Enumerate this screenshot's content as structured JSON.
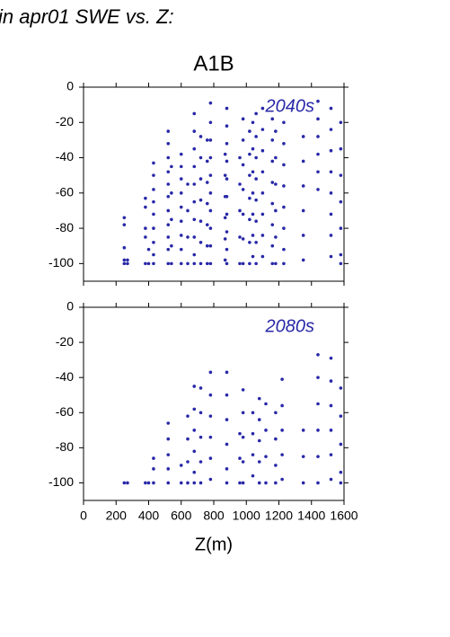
{
  "chart_data": [
    {
      "type": "scatter",
      "title": "in apr01 SWE vs. Z:",
      "subtitle": "A1B",
      "label": "2040s",
      "color": "#2828a8",
      "xlim": [
        0,
        1600
      ],
      "xticks": [
        0,
        200,
        400,
        600,
        800,
        1000,
        1200,
        1400,
        1600
      ],
      "ylim": [
        -110,
        0
      ],
      "yticks": [
        0,
        -20,
        -40,
        -60,
        -80,
        -100
      ],
      "x": [
        250,
        250,
        250,
        250,
        250,
        270,
        270,
        380,
        380,
        380,
        380,
        380,
        400,
        400,
        430,
        430,
        430,
        430,
        430,
        430,
        430,
        430,
        430,
        520,
        520,
        520,
        520,
        520,
        520,
        520,
        520,
        520,
        520,
        520,
        540,
        540,
        540,
        540,
        540,
        600,
        600,
        600,
        600,
        600,
        600,
        600,
        600,
        600,
        640,
        640,
        640,
        640,
        680,
        680,
        680,
        680,
        680,
        680,
        680,
        680,
        680,
        680,
        720,
        720,
        720,
        720,
        720,
        720,
        720,
        760,
        760,
        760,
        760,
        760,
        760,
        760,
        780,
        780,
        780,
        780,
        780,
        780,
        780,
        780,
        780,
        780,
        870,
        870,
        870,
        870,
        870,
        870,
        880,
        880,
        880,
        880,
        880,
        880,
        880,
        880,
        880,
        880,
        960,
        960,
        960,
        960,
        960,
        980,
        980,
        980,
        980,
        980,
        980,
        980,
        1020,
        1020,
        1020,
        1020,
        1020,
        1020,
        1020,
        1040,
        1040,
        1040,
        1040,
        1040,
        1040,
        1040,
        1060,
        1060,
        1060,
        1060,
        1060,
        1060,
        1060,
        1060,
        1100,
        1100,
        1100,
        1100,
        1100,
        1100,
        1100,
        1100,
        1160,
        1160,
        1160,
        1160,
        1160,
        1160,
        1160,
        1160,
        1180,
        1180,
        1180,
        1180,
        1180,
        1180,
        1230,
        1230,
        1230,
        1230,
        1230,
        1230,
        1230,
        1230,
        1350,
        1350,
        1350,
        1350,
        1350,
        1350,
        1440,
        1440,
        1440,
        1440,
        1440,
        1440,
        1520,
        1520,
        1520,
        1520,
        1520,
        1520,
        1520,
        1520,
        1580,
        1580,
        1580,
        1580,
        1580,
        1580,
        1580
      ],
      "values": [
        -74,
        -78,
        -91,
        -98,
        -100,
        -100,
        -98,
        -63,
        -68,
        -80,
        -85,
        -100,
        -92,
        -100,
        -43,
        -50,
        -58,
        -65,
        -72,
        -80,
        -88,
        -95,
        -100,
        -25,
        -32,
        -40,
        -48,
        -55,
        -62,
        -70,
        -78,
        -85,
        -92,
        -100,
        -45,
        -60,
        -75,
        -90,
        -100,
        -38,
        -45,
        -52,
        -60,
        -68,
        -76,
        -84,
        -92,
        -100,
        -55,
        -70,
        -85,
        -100,
        -15,
        -25,
        -35,
        -45,
        -55,
        -65,
        -75,
        -85,
        -95,
        -100,
        -28,
        -40,
        -52,
        -64,
        -76,
        -88,
        -100,
        -30,
        -42,
        -54,
        -66,
        -78,
        -90,
        -100,
        -9,
        -20,
        -30,
        -40,
        -50,
        -60,
        -70,
        -80,
        -90,
        -100,
        -38,
        -50,
        -62,
        -74,
        -86,
        -98,
        -12,
        -22,
        -32,
        -42,
        -52,
        -62,
        -72,
        -82,
        -92,
        -100,
        -40,
        -55,
        -70,
        -85,
        -100,
        -18,
        -30,
        -44,
        -58,
        -72,
        -86,
        -100,
        -25,
        -38,
        -50,
        -63,
        -75,
        -88,
        -100,
        -20,
        -35,
        -48,
        -60,
        -72,
        -84,
        -96,
        -15,
        -28,
        -40,
        -52,
        -64,
        -76,
        -88,
        -100,
        -12,
        -24,
        -36,
        -48,
        -60,
        -72,
        -84,
        -96,
        -18,
        -30,
        -42,
        -54,
        -66,
        -78,
        -90,
        -100,
        -25,
        -40,
        -55,
        -70,
        -85,
        -100,
        -20,
        -32,
        -44,
        -56,
        -68,
        -80,
        -92,
        -100,
        -28,
        -42,
        -56,
        -70,
        -84,
        -98,
        -8,
        -18,
        -28,
        -38,
        -48,
        -58,
        -12,
        -24,
        -36,
        -48,
        -60,
        -72,
        -84,
        -96,
        -20,
        -35,
        -50,
        -65,
        -80,
        -95,
        -100
      ]
    },
    {
      "type": "scatter",
      "label": "2080s",
      "xlabel": "Z(m)",
      "color": "#2828a8",
      "xlim": [
        0,
        1600
      ],
      "xticks": [
        0,
        200,
        400,
        600,
        800,
        1000,
        1200,
        1400,
        1600
      ],
      "ylim": [
        -110,
        0
      ],
      "yticks": [
        0,
        -20,
        -40,
        -60,
        -80,
        -100
      ],
      "x": [
        250,
        270,
        380,
        400,
        430,
        430,
        430,
        520,
        520,
        520,
        520,
        520,
        600,
        600,
        640,
        640,
        640,
        640,
        680,
        680,
        680,
        680,
        680,
        680,
        720,
        720,
        720,
        720,
        720,
        780,
        780,
        780,
        780,
        780,
        780,
        880,
        880,
        880,
        880,
        880,
        880,
        960,
        960,
        960,
        980,
        980,
        980,
        980,
        980,
        1040,
        1040,
        1040,
        1040,
        1080,
        1080,
        1080,
        1080,
        1080,
        1120,
        1120,
        1120,
        1120,
        1180,
        1180,
        1180,
        1180,
        1220,
        1220,
        1220,
        1220,
        1220,
        1350,
        1350,
        1350,
        1440,
        1440,
        1440,
        1440,
        1440,
        1440,
        1520,
        1520,
        1520,
        1520,
        1520,
        1520,
        1580,
        1580,
        1580,
        1580,
        1580
      ],
      "values": [
        -100,
        -100,
        -100,
        -100,
        -86,
        -92,
        -100,
        -66,
        -75,
        -84,
        -92,
        -100,
        -90,
        -100,
        -62,
        -75,
        -88,
        -100,
        -45,
        -58,
        -70,
        -82,
        -94,
        -100,
        -46,
        -60,
        -74,
        -88,
        -100,
        -37,
        -50,
        -62,
        -74,
        -86,
        -98,
        -37,
        -50,
        -64,
        -78,
        -92,
        -100,
        -72,
        -86,
        -100,
        -47,
        -60,
        -74,
        -88,
        -100,
        -60,
        -72,
        -84,
        -96,
        -52,
        -64,
        -76,
        -88,
        -100,
        -55,
        -70,
        -85,
        -100,
        -60,
        -75,
        -90,
        -100,
        -41,
        -56,
        -70,
        -84,
        -98,
        -70,
        -85,
        -100,
        -27,
        -40,
        -55,
        -70,
        -85,
        -100,
        -29,
        -42,
        -56,
        -70,
        -84,
        -98,
        -46,
        -62,
        -78,
        -94,
        -100
      ]
    }
  ]
}
